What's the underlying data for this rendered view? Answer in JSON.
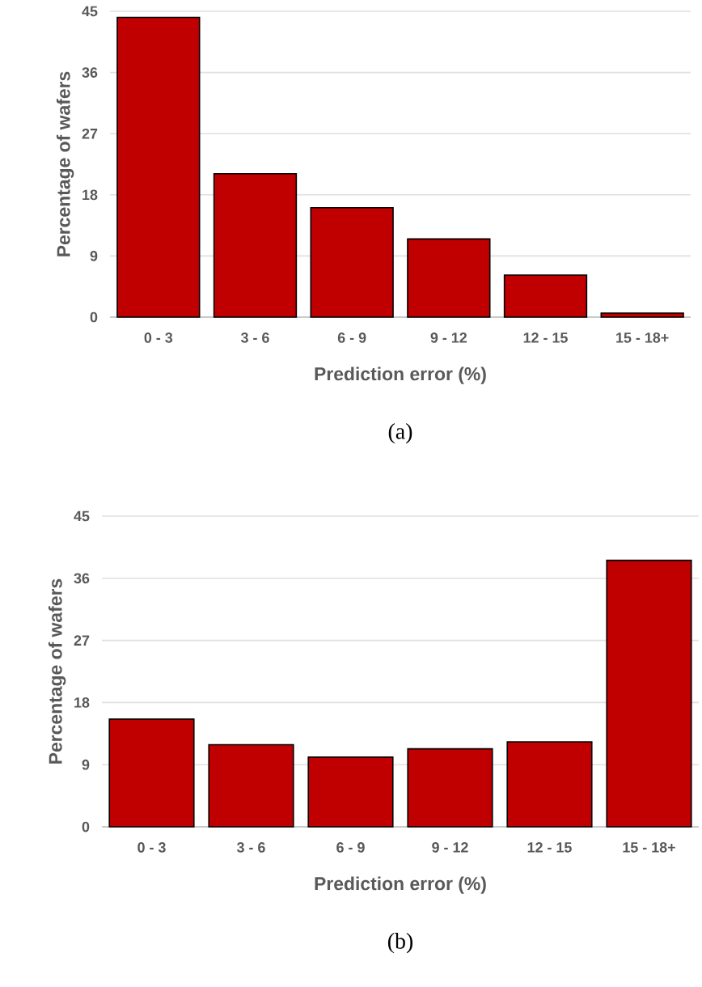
{
  "chart_data": [
    {
      "type": "bar",
      "categories": [
        "0 - 3",
        "3 - 6",
        "6 - 9",
        "9 - 12",
        "12 - 15",
        "15 - 18+"
      ],
      "values": [
        44.1,
        21.1,
        16.1,
        11.5,
        6.2,
        0.6
      ],
      "color": "#c00000",
      "ylim": [
        0,
        45
      ],
      "yticks": [
        0,
        9,
        18,
        27,
        36,
        45
      ],
      "grid": "y",
      "xlabel": "Prediction error (%)",
      "ylabel": "Percentage of wafers",
      "annotations": [
        "(a)"
      ]
    },
    {
      "type": "bar",
      "categories": [
        "0 - 3",
        "3 - 6",
        "6 - 9",
        "9 - 12",
        "12 - 15",
        "15 - 18+"
      ],
      "values": [
        15.6,
        11.9,
        10.1,
        11.3,
        12.3,
        38.6
      ],
      "color": "#c00000",
      "ylim": [
        0,
        45
      ],
      "yticks": [
        0,
        9,
        18,
        27,
        36,
        45
      ],
      "grid": "y",
      "xlabel": "Prediction error (%)",
      "ylabel": "Percentage of wafers",
      "annotations": [
        "(b)"
      ]
    }
  ]
}
